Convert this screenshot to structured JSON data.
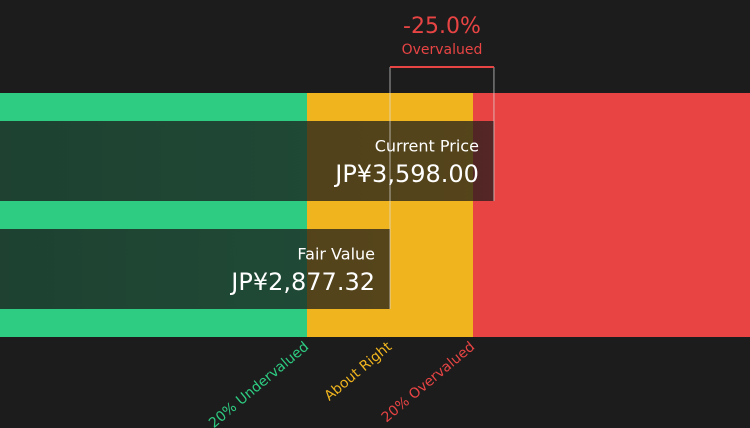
{
  "chart_data": {
    "type": "valuation",
    "current_price": {
      "label": "Current Price",
      "value": 3598.0,
      "value_label": "JP¥3,598.00"
    },
    "fair_value": {
      "label": "Fair Value",
      "value": 2877.32,
      "value_label": "JP¥2,877.32"
    },
    "difference": {
      "value": -25.0,
      "value_label": "-25.0%",
      "label": "Overvalued"
    },
    "zones": [
      {
        "label": "20% Undervalued",
        "color": "#2ecc82"
      },
      {
        "label": "About Right",
        "color": "#f0b41e"
      },
      {
        "label": "20% Overvalued",
        "color": "#e84444"
      }
    ]
  }
}
